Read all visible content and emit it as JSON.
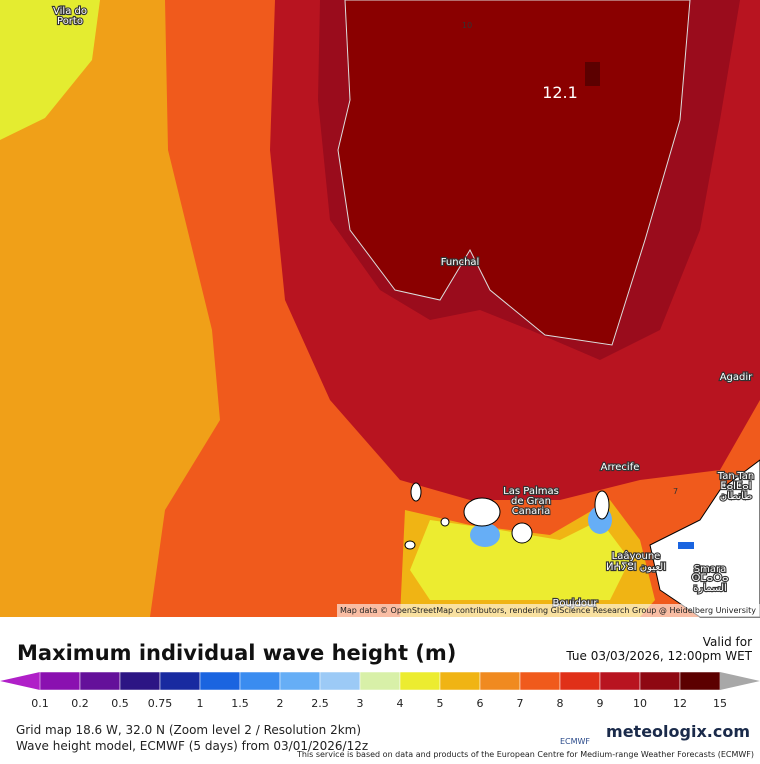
{
  "map": {
    "places": [
      "Vila do\nPorto",
      "Funchal",
      "Las Palmas\nde Gran\nCanaria",
      "Arrecife",
      "Agadir",
      "Tan-Tan",
      "ⵟⴰⵏⵟⴰⵏ",
      "طانطان",
      "Laâyoune",
      "ⵍⵄⵢⵓⵏ العيون",
      "Smara",
      "ⵙⵎⴰⵔⴰ",
      "السمارة",
      "Boujdour"
    ],
    "max_value": "12.1",
    "contours": [
      "10",
      "7"
    ],
    "attribution": "Map data © OpenStreetMap contributors, rendering GIScience Research Group @ Heidelberg University"
  },
  "header": {
    "title": "Maximum individual wave height (m)",
    "valid_label": "Valid for",
    "valid_time": "Tue 03/03/2026, 12:00pm WET"
  },
  "legend": {
    "ticks": [
      "0.1",
      "0.2",
      "0.5",
      "0.75",
      "1",
      "1.5",
      "2",
      "2.5",
      "3",
      "4",
      "5",
      "6",
      "7",
      "8",
      "9",
      "10",
      "12",
      "15"
    ],
    "colors": [
      "#8a10b0",
      "#64109a",
      "#2c1584",
      "#182aa0",
      "#1a64e0",
      "#3a8cf0",
      "#66aef6",
      "#9ccaf6",
      "#d8f0a8",
      "#ecec30",
      "#f0b414",
      "#f08a20",
      "#f05a1c",
      "#e03018",
      "#b81420",
      "#8e0812",
      "#5c0000"
    ],
    "under_color": "#b020c8",
    "over_color": "#a8a8a8"
  },
  "footer": {
    "grid": "Grid map 18.6 W, 32.0 N (Zoom level 2 / Resolution 2km)",
    "model": "Wave height model, ECMWF (5 days) from 03/01/2026/12z",
    "notice": "This service is based on data and products of the European Centre for Medium-range Weather Forecasts (ECMWF)",
    "ecmwf": "ECMWF",
    "brand": "meteologix.com"
  }
}
